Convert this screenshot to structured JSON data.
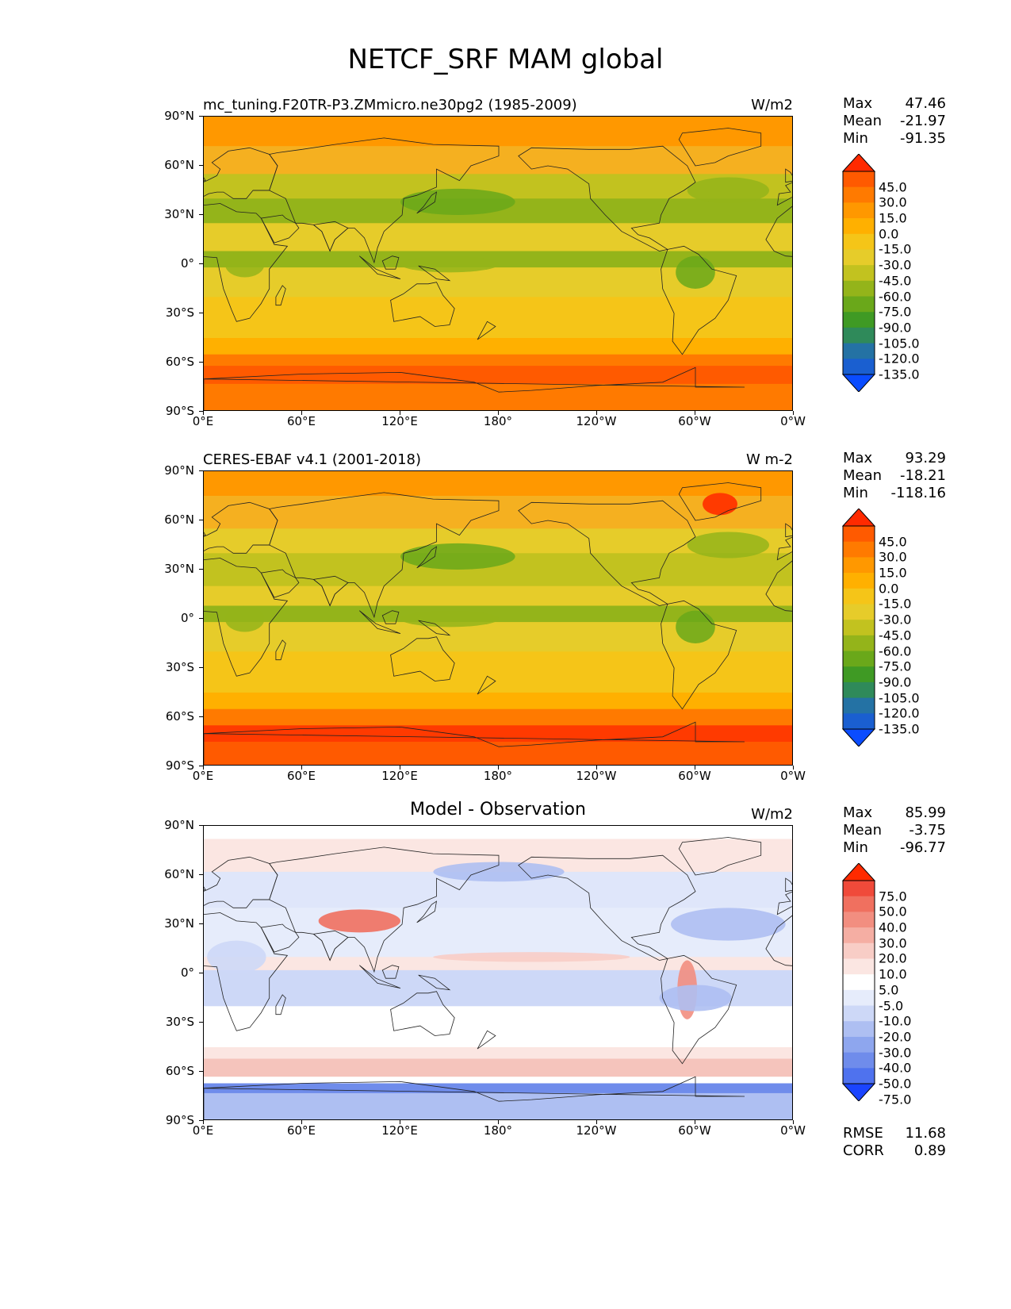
{
  "figure": {
    "title": "NETCF_SRF MAM global"
  },
  "lat_ticks": [
    "90°N",
    "60°N",
    "30°N",
    "0°",
    "30°S",
    "60°S",
    "90°S"
  ],
  "lon_ticks": [
    "0°E",
    "60°E",
    "120°E",
    "180°",
    "120°W",
    "60°W",
    "0°W"
  ],
  "panels": [
    {
      "title": "mc_tuning.F20TR-P3.ZMmicro.ne30pg2 (1985-2009)",
      "title_align": "left",
      "units": "W/m2",
      "stats": [
        {
          "label": "Max",
          "value": "47.46"
        },
        {
          "label": "Mean",
          "value": "-21.97"
        },
        {
          "label": "Min",
          "value": "-91.35"
        }
      ],
      "colorbar": {
        "labels": [
          "45.0",
          "30.0",
          "15.0",
          "0.0",
          "-15.0",
          "-30.0",
          "-45.0",
          "-60.0",
          "-75.0",
          "-90.0",
          "-105.0",
          "-120.0",
          "-135.0"
        ],
        "colors": [
          "#ff2a00",
          "#ff5a00",
          "#ff7a00",
          "#ff9800",
          "#ffb000",
          "#f5c518",
          "#e6cc2a",
          "#c2c21f",
          "#94b41a",
          "#6aa81a",
          "#3f9a24",
          "#2f8a5a",
          "#2472a4",
          "#1a5fd0",
          "#0a4cff"
        ]
      },
      "metrics": []
    },
    {
      "title": "CERES-EBAF v4.1 (2001-2018)",
      "title_align": "left",
      "units": "W m-2",
      "stats": [
        {
          "label": "Max",
          "value": "93.29"
        },
        {
          "label": "Mean",
          "value": "-18.21"
        },
        {
          "label": "Min",
          "value": "-118.16"
        }
      ],
      "colorbar": {
        "labels": [
          "45.0",
          "30.0",
          "15.0",
          "0.0",
          "-15.0",
          "-30.0",
          "-45.0",
          "-60.0",
          "-75.0",
          "-90.0",
          "-105.0",
          "-120.0",
          "-135.0"
        ],
        "colors": [
          "#ff2a00",
          "#ff5a00",
          "#ff7a00",
          "#ff9800",
          "#ffb000",
          "#f5c518",
          "#e6cc2a",
          "#c2c21f",
          "#94b41a",
          "#6aa81a",
          "#3f9a24",
          "#2f8a5a",
          "#2472a4",
          "#1a5fd0",
          "#0a4cff"
        ]
      },
      "metrics": []
    },
    {
      "title": "Model - Observation",
      "title_align": "center",
      "units": "W/m2",
      "stats": [
        {
          "label": "Max",
          "value": "85.99"
        },
        {
          "label": "Mean",
          "value": "-3.75"
        },
        {
          "label": "Min",
          "value": "-96.77"
        }
      ],
      "colorbar": {
        "labels": [
          "75.0",
          "50.0",
          "40.0",
          "30.0",
          "20.0",
          "10.0",
          "5.0",
          "-5.0",
          "-10.0",
          "-20.0",
          "-30.0",
          "-40.0",
          "-50.0",
          "-75.0"
        ],
        "colors": [
          "#ff2a00",
          "#f04a3a",
          "#f0705f",
          "#f28e80",
          "#f5aea3",
          "#f8cdc6",
          "#fbe6e2",
          "#ffffff",
          "#e6ecfb",
          "#cdd8f7",
          "#aebff2",
          "#8ea6ee",
          "#6f8ceb",
          "#4f72ee",
          "#1a44ff"
        ]
      },
      "metrics": [
        {
          "label": "RMSE",
          "value": "11.68"
        },
        {
          "label": "CORR",
          "value": "0.89"
        }
      ]
    }
  ]
}
